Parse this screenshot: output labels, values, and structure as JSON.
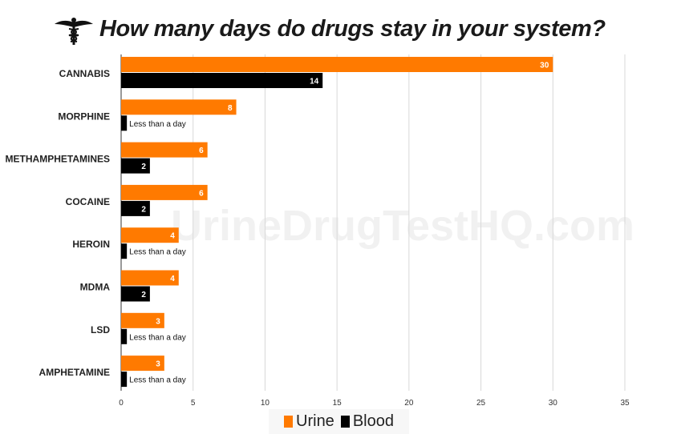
{
  "chart_data": {
    "type": "bar",
    "orientation": "horizontal",
    "title": "How many days do drugs stay in your system?",
    "watermark": "UrineDrugTestHQ.com",
    "categories": [
      "CANNABIS",
      "MORPHINE",
      "METHAMPHETAMINES",
      "COCAINE",
      "HEROIN",
      "MDMA",
      "LSD",
      "AMPHETAMINE"
    ],
    "series": [
      {
        "name": "Urine",
        "color": "#ff7a00",
        "values": [
          30,
          8,
          6,
          6,
          4,
          4,
          3,
          3
        ],
        "labels": [
          "30",
          "8",
          "6",
          "6",
          "4",
          "4",
          "3",
          "3"
        ]
      },
      {
        "name": "Blood",
        "color": "#000000",
        "values": [
          14,
          0.4,
          2,
          2,
          0.4,
          2,
          0.4,
          0.4
        ],
        "labels": [
          "14",
          "Less than a day",
          "2",
          "2",
          "Less than a day",
          "2",
          "Less than a day",
          "Less than a day"
        ]
      }
    ],
    "xlim": [
      0,
      35
    ],
    "xticks": [
      "0",
      "5",
      "10",
      "15",
      "20",
      "25",
      "30",
      "35"
    ],
    "grid": true,
    "legend_placement": "bottom",
    "title_icon": "caduceus-icon"
  }
}
